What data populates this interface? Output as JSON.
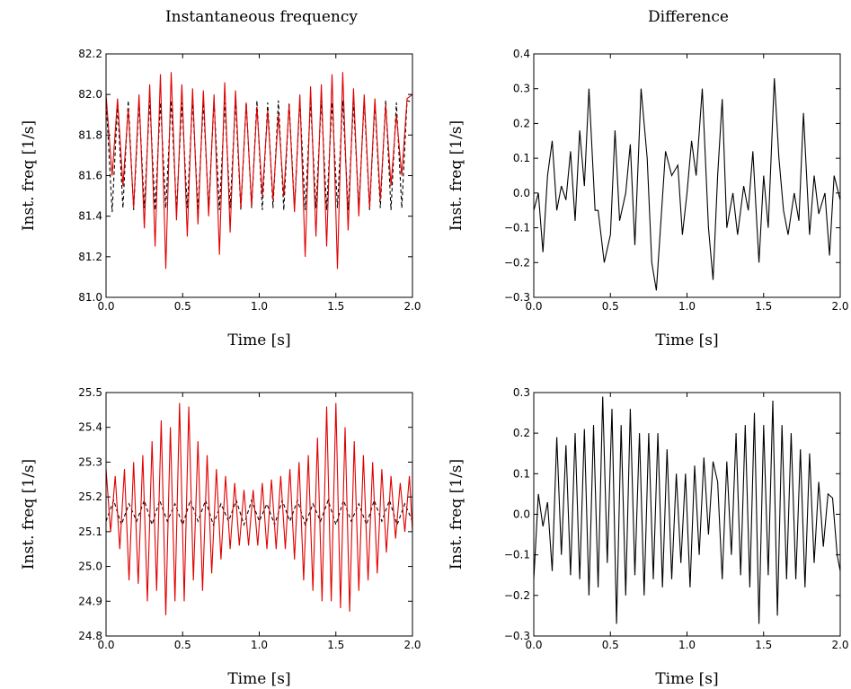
{
  "column_titles": [
    "Instantaneous frequency",
    "Difference"
  ],
  "chart_data": [
    {
      "type": "line",
      "xlabel": "Time [s]",
      "ylabel": "Inst. freq [1/s]",
      "xlim": [
        0.0,
        2.0
      ],
      "ylim": [
        81.0,
        82.2
      ],
      "xticks": [
        "0.0",
        "0.5",
        "1.0",
        "1.5",
        "2.0"
      ],
      "yticks": [
        "81.0",
        "81.2",
        "81.4",
        "81.6",
        "81.8",
        "82.0",
        "82.2"
      ],
      "series": [
        {
          "style": "dashed",
          "color": "#000000",
          "x": [
            0.0,
            0.04,
            0.075,
            0.11,
            0.145,
            0.18,
            0.215,
            0.25,
            0.285,
            0.32,
            0.355,
            0.39,
            0.425,
            0.46,
            0.495,
            0.53,
            0.565,
            0.6,
            0.635,
            0.67,
            0.705,
            0.74,
            0.775,
            0.81,
            0.845,
            0.88,
            0.915,
            0.95,
            0.985,
            1.02,
            1.055,
            1.09,
            1.125,
            1.16,
            1.195,
            1.23,
            1.265,
            1.3,
            1.335,
            1.37,
            1.405,
            1.44,
            1.475,
            1.51,
            1.545,
            1.58,
            1.615,
            1.65,
            1.685,
            1.72,
            1.755,
            1.79,
            1.825,
            1.86,
            1.895,
            1.93,
            1.965,
            2.0
          ],
          "y": [
            81.98,
            81.42,
            81.95,
            81.44,
            81.97,
            81.43,
            81.96,
            81.44,
            81.97,
            81.43,
            81.96,
            81.44,
            81.97,
            81.43,
            81.96,
            81.44,
            81.97,
            81.43,
            81.96,
            81.44,
            81.97,
            81.43,
            81.96,
            81.44,
            81.97,
            81.43,
            81.96,
            81.44,
            81.97,
            81.43,
            81.96,
            81.44,
            81.97,
            81.43,
            81.96,
            81.44,
            81.97,
            81.43,
            81.96,
            81.44,
            81.97,
            81.43,
            81.96,
            81.44,
            81.97,
            81.43,
            81.96,
            81.44,
            81.97,
            81.43,
            81.96,
            81.44,
            81.97,
            81.43,
            81.96,
            81.44,
            81.97,
            81.96
          ]
        },
        {
          "style": "solid",
          "color": "#e00000",
          "x": [
            0.0,
            0.04,
            0.075,
            0.11,
            0.145,
            0.18,
            0.215,
            0.25,
            0.285,
            0.32,
            0.355,
            0.39,
            0.425,
            0.46,
            0.495,
            0.53,
            0.565,
            0.6,
            0.635,
            0.67,
            0.705,
            0.74,
            0.775,
            0.81,
            0.845,
            0.88,
            0.915,
            0.95,
            0.985,
            1.02,
            1.055,
            1.09,
            1.125,
            1.16,
            1.195,
            1.23,
            1.265,
            1.3,
            1.335,
            1.37,
            1.405,
            1.44,
            1.475,
            1.51,
            1.545,
            1.58,
            1.615,
            1.65,
            1.685,
            1.72,
            1.755,
            1.79,
            1.825,
            1.86,
            1.895,
            1.93,
            1.965,
            2.0
          ],
          "y": [
            82.0,
            81.6,
            81.98,
            81.55,
            81.93,
            81.44,
            82.0,
            81.34,
            82.05,
            81.25,
            82.1,
            81.14,
            82.11,
            81.38,
            82.05,
            81.3,
            82.03,
            81.36,
            82.02,
            81.4,
            82.0,
            81.21,
            82.06,
            81.32,
            82.02,
            81.44,
            81.96,
            81.45,
            81.94,
            81.5,
            81.92,
            81.48,
            81.9,
            81.5,
            81.95,
            81.42,
            82.0,
            81.2,
            82.04,
            81.3,
            82.05,
            81.25,
            82.1,
            81.14,
            82.11,
            81.33,
            82.03,
            81.4,
            82.0,
            81.44,
            81.98,
            81.48,
            81.95,
            81.55,
            81.9,
            81.6,
            81.98,
            82.0
          ]
        }
      ]
    },
    {
      "type": "line",
      "xlabel": "Time [s]",
      "ylabel": "Inst. freq [1/s]",
      "xlim": [
        0.0,
        2.0
      ],
      "ylim": [
        -0.3,
        0.4
      ],
      "xticks": [
        "0.0",
        "0.5",
        "1.0",
        "1.5",
        "2.0"
      ],
      "yticks": [
        "−0.3",
        "−0.2",
        "−0.1",
        "0.0",
        "0.1",
        "0.2",
        "0.3",
        "0.4"
      ],
      "series": [
        {
          "style": "solid",
          "color": "#000000",
          "x": [
            0.0,
            0.03,
            0.06,
            0.09,
            0.12,
            0.15,
            0.18,
            0.21,
            0.24,
            0.27,
            0.3,
            0.33,
            0.36,
            0.4,
            0.42,
            0.46,
            0.5,
            0.53,
            0.56,
            0.6,
            0.63,
            0.66,
            0.7,
            0.74,
            0.77,
            0.8,
            0.83,
            0.86,
            0.9,
            0.94,
            0.97,
            1.0,
            1.03,
            1.06,
            1.1,
            1.14,
            1.17,
            1.2,
            1.23,
            1.26,
            1.3,
            1.33,
            1.37,
            1.4,
            1.43,
            1.47,
            1.5,
            1.53,
            1.57,
            1.6,
            1.63,
            1.66,
            1.7,
            1.73,
            1.76,
            1.8,
            1.83,
            1.86,
            1.9,
            1.93,
            1.96,
            2.0
          ],
          "y": [
            -0.05,
            0.0,
            -0.17,
            0.05,
            0.15,
            -0.05,
            0.02,
            -0.02,
            0.12,
            -0.08,
            0.18,
            0.02,
            0.3,
            -0.05,
            -0.05,
            -0.2,
            -0.12,
            0.18,
            -0.08,
            0.0,
            0.14,
            -0.15,
            0.3,
            0.1,
            -0.2,
            -0.28,
            -0.08,
            0.12,
            0.05,
            0.08,
            -0.12,
            0.0,
            0.15,
            0.05,
            0.3,
            -0.1,
            -0.25,
            0.05,
            0.27,
            -0.1,
            0.0,
            -0.12,
            0.02,
            -0.05,
            0.12,
            -0.2,
            0.05,
            -0.1,
            0.33,
            0.1,
            -0.05,
            -0.12,
            0.0,
            -0.08,
            0.23,
            -0.12,
            0.05,
            -0.06,
            0.0,
            -0.18,
            0.05,
            -0.02
          ]
        }
      ]
    },
    {
      "type": "line",
      "xlabel": "Time [s]",
      "ylabel": "Inst. freq [1/s]",
      "xlim": [
        0.0,
        2.0
      ],
      "ylim": [
        24.8,
        25.5
      ],
      "xticks": [
        "0.0",
        "0.5",
        "1.0",
        "1.5",
        "2.0"
      ],
      "yticks": [
        "24.8",
        "24.9",
        "25.0",
        "25.1",
        "25.2",
        "25.3",
        "25.4",
        "25.5"
      ],
      "series": [
        {
          "style": "dashed",
          "color": "#000000",
          "x": [
            0.0,
            0.05,
            0.1,
            0.15,
            0.2,
            0.25,
            0.3,
            0.35,
            0.4,
            0.45,
            0.5,
            0.55,
            0.6,
            0.65,
            0.7,
            0.75,
            0.8,
            0.85,
            0.9,
            0.95,
            1.0,
            1.05,
            1.1,
            1.15,
            1.2,
            1.25,
            1.3,
            1.35,
            1.4,
            1.45,
            1.5,
            1.55,
            1.6,
            1.65,
            1.7,
            1.75,
            1.8,
            1.85,
            1.9,
            1.95,
            2.0
          ],
          "y": [
            25.13,
            25.19,
            25.12,
            25.18,
            25.13,
            25.19,
            25.12,
            25.19,
            25.13,
            25.18,
            25.12,
            25.19,
            25.13,
            25.19,
            25.12,
            25.18,
            25.13,
            25.19,
            25.12,
            25.19,
            25.13,
            25.18,
            25.12,
            25.19,
            25.13,
            25.19,
            25.12,
            25.18,
            25.13,
            25.19,
            25.12,
            25.19,
            25.13,
            25.18,
            25.12,
            25.19,
            25.13,
            25.19,
            25.12,
            25.18,
            25.13
          ]
        },
        {
          "style": "solid",
          "color": "#e00000",
          "x": [
            0.0,
            0.03,
            0.06,
            0.09,
            0.12,
            0.15,
            0.18,
            0.21,
            0.24,
            0.27,
            0.3,
            0.33,
            0.36,
            0.39,
            0.42,
            0.45,
            0.48,
            0.51,
            0.54,
            0.57,
            0.6,
            0.63,
            0.66,
            0.69,
            0.72,
            0.75,
            0.78,
            0.81,
            0.84,
            0.87,
            0.9,
            0.93,
            0.96,
            0.99,
            1.02,
            1.05,
            1.08,
            1.11,
            1.14,
            1.17,
            1.2,
            1.23,
            1.26,
            1.29,
            1.32,
            1.35,
            1.38,
            1.41,
            1.44,
            1.47,
            1.5,
            1.53,
            1.56,
            1.59,
            1.62,
            1.65,
            1.68,
            1.71,
            1.74,
            1.77,
            1.8,
            1.83,
            1.86,
            1.89,
            1.92,
            1.95,
            1.98,
            2.0
          ],
          "y": [
            25.28,
            25.1,
            25.26,
            25.05,
            25.28,
            24.96,
            25.3,
            24.95,
            25.32,
            24.9,
            25.36,
            24.93,
            25.42,
            24.86,
            25.4,
            24.9,
            25.47,
            24.9,
            25.46,
            24.96,
            25.36,
            24.93,
            25.32,
            24.98,
            25.28,
            25.02,
            25.26,
            25.05,
            25.24,
            25.06,
            25.22,
            25.06,
            25.22,
            25.06,
            25.24,
            25.05,
            25.25,
            25.05,
            25.26,
            25.05,
            25.28,
            25.02,
            25.3,
            24.96,
            25.32,
            24.93,
            25.37,
            24.9,
            25.46,
            24.9,
            25.47,
            24.88,
            25.4,
            24.87,
            25.36,
            24.93,
            25.32,
            24.96,
            25.3,
            24.98,
            25.28,
            25.04,
            25.26,
            25.08,
            25.24,
            25.1,
            25.26,
            25.1
          ]
        }
      ]
    },
    {
      "type": "line",
      "xlabel": "Time [s]",
      "ylabel": "Inst. freq [1/s]",
      "xlim": [
        0.0,
        2.0
      ],
      "ylim": [
        -0.3,
        0.3
      ],
      "xticks": [
        "0.0",
        "0.5",
        "1.0",
        "1.5",
        "2.0"
      ],
      "yticks": [
        "−0.3",
        "−0.2",
        "−0.1",
        "0.0",
        "0.1",
        "0.2",
        "0.3"
      ],
      "series": [
        {
          "style": "solid",
          "color": "#000000",
          "x": [
            0.0,
            0.03,
            0.06,
            0.09,
            0.12,
            0.15,
            0.18,
            0.21,
            0.24,
            0.27,
            0.3,
            0.33,
            0.36,
            0.39,
            0.42,
            0.45,
            0.48,
            0.51,
            0.54,
            0.57,
            0.6,
            0.63,
            0.66,
            0.69,
            0.72,
            0.75,
            0.78,
            0.81,
            0.84,
            0.87,
            0.9,
            0.93,
            0.96,
            0.99,
            1.02,
            1.05,
            1.08,
            1.11,
            1.14,
            1.17,
            1.2,
            1.23,
            1.26,
            1.29,
            1.32,
            1.35,
            1.38,
            1.41,
            1.44,
            1.47,
            1.5,
            1.53,
            1.56,
            1.59,
            1.62,
            1.65,
            1.68,
            1.71,
            1.74,
            1.77,
            1.8,
            1.83,
            1.86,
            1.89,
            1.92,
            1.95,
            1.98,
            2.0
          ],
          "y": [
            -0.16,
            0.05,
            -0.03,
            0.03,
            -0.14,
            0.19,
            -0.1,
            0.17,
            -0.15,
            0.2,
            -0.16,
            0.21,
            -0.2,
            0.22,
            -0.18,
            0.29,
            -0.12,
            0.26,
            -0.27,
            0.22,
            -0.2,
            0.26,
            -0.15,
            0.2,
            -0.2,
            0.2,
            -0.16,
            0.2,
            -0.18,
            0.16,
            -0.16,
            0.1,
            -0.12,
            0.1,
            -0.18,
            0.12,
            -0.1,
            0.14,
            -0.05,
            0.13,
            0.08,
            -0.16,
            0.13,
            -0.1,
            0.2,
            -0.15,
            0.22,
            -0.18,
            0.25,
            -0.27,
            0.22,
            -0.15,
            0.28,
            -0.25,
            0.22,
            -0.16,
            0.2,
            -0.16,
            0.16,
            -0.18,
            0.15,
            -0.12,
            0.08,
            -0.08,
            0.05,
            0.04,
            -0.1,
            -0.14
          ]
        }
      ]
    }
  ]
}
